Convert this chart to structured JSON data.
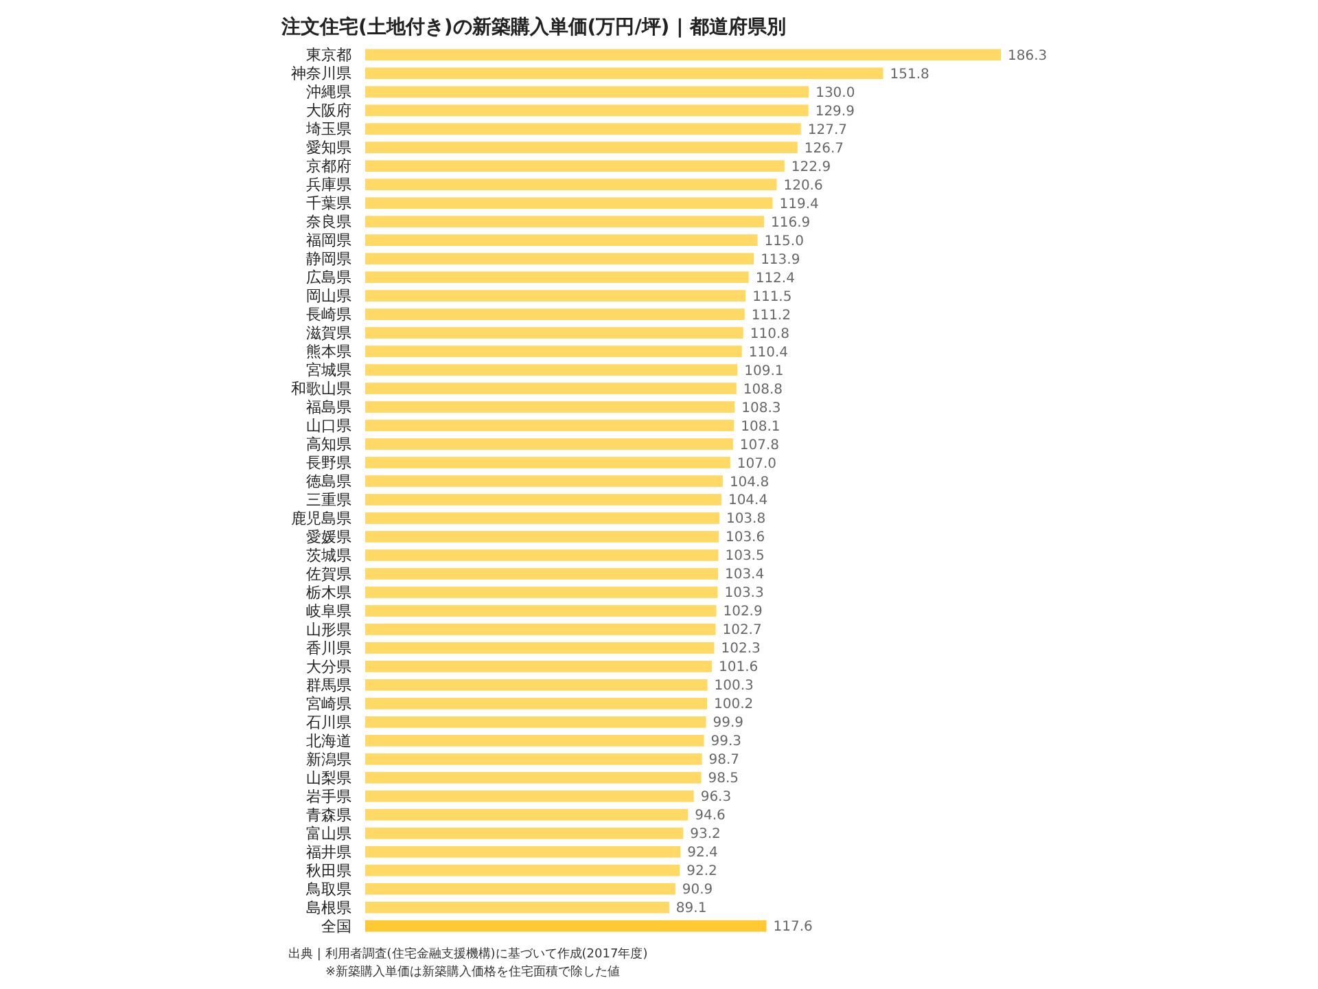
{
  "chart_data": {
    "type": "bar",
    "orientation": "horizontal",
    "title": "注文住宅(土地付き)の新築購入単価(万円/坪) | 都道府県別",
    "categories": [
      "東京都",
      "神奈川県",
      "沖縄県",
      "大阪府",
      "埼玉県",
      "愛知県",
      "京都府",
      "兵庫県",
      "千葉県",
      "奈良県",
      "福岡県",
      "静岡県",
      "広島県",
      "岡山県",
      "長崎県",
      "滋賀県",
      "熊本県",
      "宮城県",
      "和歌山県",
      "福島県",
      "山口県",
      "高知県",
      "長野県",
      "徳島県",
      "三重県",
      "鹿児島県",
      "愛媛県",
      "茨城県",
      "佐賀県",
      "栃木県",
      "岐阜県",
      "山形県",
      "香川県",
      "大分県",
      "群馬県",
      "宮崎県",
      "石川県",
      "北海道",
      "新潟県",
      "山梨県",
      "岩手県",
      "青森県",
      "富山県",
      "福井県",
      "秋田県",
      "鳥取県",
      "島根県",
      "全国"
    ],
    "values": [
      186.3,
      151.8,
      130.0,
      129.9,
      127.7,
      126.7,
      122.9,
      120.6,
      119.4,
      116.9,
      115.0,
      113.9,
      112.4,
      111.5,
      111.2,
      110.8,
      110.4,
      109.1,
      108.8,
      108.3,
      108.1,
      107.8,
      107.0,
      104.8,
      104.4,
      103.8,
      103.6,
      103.5,
      103.4,
      103.3,
      102.9,
      102.7,
      102.3,
      101.6,
      100.3,
      100.2,
      99.9,
      99.3,
      98.7,
      98.5,
      96.3,
      94.6,
      93.2,
      92.4,
      92.2,
      90.9,
      89.1,
      117.6
    ],
    "colors": [
      "#ffd966",
      "#ffd966",
      "#ffd966",
      "#ffd966",
      "#ffd966",
      "#ffd966",
      "#ffd966",
      "#ffd966",
      "#ffd966",
      "#ffd966",
      "#ffd966",
      "#ffd966",
      "#ffd966",
      "#ffd966",
      "#ffd966",
      "#ffd966",
      "#ffd966",
      "#ffd966",
      "#ffd966",
      "#ffd966",
      "#ffd966",
      "#ffd966",
      "#ffd966",
      "#ffd966",
      "#ffd966",
      "#ffd966",
      "#ffd966",
      "#ffd966",
      "#ffd966",
      "#ffd966",
      "#ffd966",
      "#ffd966",
      "#ffd966",
      "#ffd966",
      "#ffd966",
      "#ffd966",
      "#ffd966",
      "#ffd966",
      "#ffd966",
      "#ffd966",
      "#ffd966",
      "#ffd966",
      "#ffd966",
      "#ffd966",
      "#ffd966",
      "#ffd966",
      "#ffd966",
      "#ffc933"
    ],
    "value_labels": [
      "186.3",
      "151.8",
      "130.0",
      "129.9",
      "127.7",
      "126.7",
      "122.9",
      "120.6",
      "119.4",
      "116.9",
      "115.0",
      "113.9",
      "112.4",
      "111.5",
      "111.2",
      "110.8",
      "110.4",
      "109.1",
      "108.8",
      "108.3",
      "108.1",
      "107.8",
      "107.0",
      "104.8",
      "104.4",
      "103.8",
      "103.6",
      "103.5",
      "103.4",
      "103.3",
      "102.9",
      "102.7",
      "102.3",
      "101.6",
      "100.3",
      "100.2",
      "99.9",
      "99.3",
      "98.7",
      "98.5",
      "96.3",
      "94.6",
      "93.2",
      "92.4",
      "92.2",
      "90.9",
      "89.1",
      "117.6"
    ],
    "annotations": [
      "出典 | 利用者調査(住宅金融支援機構)に基づいて作成(2017年度)",
      "※新築購入単価は新築購入価格を住宅面積で除した値"
    ]
  }
}
